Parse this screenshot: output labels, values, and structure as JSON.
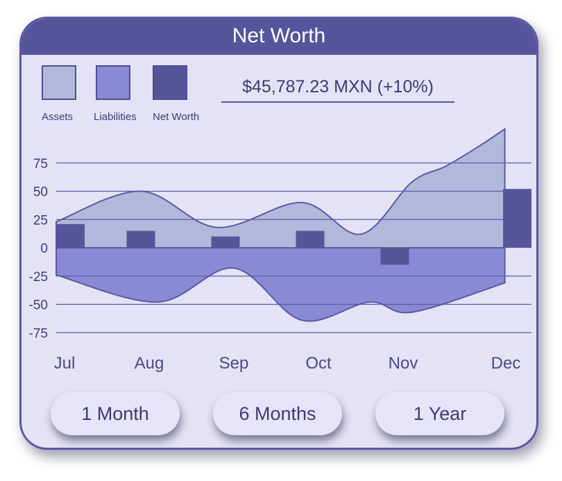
{
  "header": {
    "title": "Net Worth"
  },
  "legend": [
    {
      "label": "Assets",
      "color": "#b3b7da"
    },
    {
      "label": "Liabilities",
      "color": "#8a89d4"
    },
    {
      "label": "Net Worth",
      "color": "#57559a"
    }
  ],
  "summary": {
    "total": "$45,787.23 MXN (+10%)"
  },
  "chart_data": {
    "type": "area",
    "categories": [
      "Jul",
      "Aug",
      "Sep",
      "Oct",
      "Nov",
      "Dec"
    ],
    "y_ticks": [
      "75",
      "50",
      "25",
      "0",
      "-25",
      "-50",
      "-75"
    ],
    "ylim": [
      -75,
      100
    ],
    "series": [
      {
        "name": "Assets",
        "kind": "area",
        "color": "#b3b7da",
        "points": [
          {
            "x": 0.0,
            "y": 23
          },
          {
            "x": 1.0,
            "y": 50
          },
          {
            "x": 1.9,
            "y": 18
          },
          {
            "x": 2.9,
            "y": 40
          },
          {
            "x": 3.6,
            "y": 12
          },
          {
            "x": 4.2,
            "y": 58
          },
          {
            "x": 4.6,
            "y": 72
          },
          {
            "x": 5.0,
            "y": 90
          },
          {
            "x": 5.3,
            "y": 105
          }
        ]
      },
      {
        "name": "Liabilities",
        "kind": "area",
        "color": "#8a89d4",
        "points": [
          {
            "x": 0.0,
            "y": -24
          },
          {
            "x": 1.2,
            "y": -48
          },
          {
            "x": 2.1,
            "y": -18
          },
          {
            "x": 2.9,
            "y": -64
          },
          {
            "x": 3.7,
            "y": -48
          },
          {
            "x": 4.2,
            "y": -57
          },
          {
            "x": 5.3,
            "y": -31
          }
        ]
      },
      {
        "name": "Net Worth",
        "kind": "bar",
        "color": "#57559a",
        "values": [
          21,
          15,
          10,
          15,
          -15,
          52
        ]
      }
    ],
    "grid": true,
    "legend_position": "top-left"
  },
  "range_buttons": [
    {
      "label": "1 Month"
    },
    {
      "label": "6 Months"
    },
    {
      "label": "1 Year"
    }
  ]
}
